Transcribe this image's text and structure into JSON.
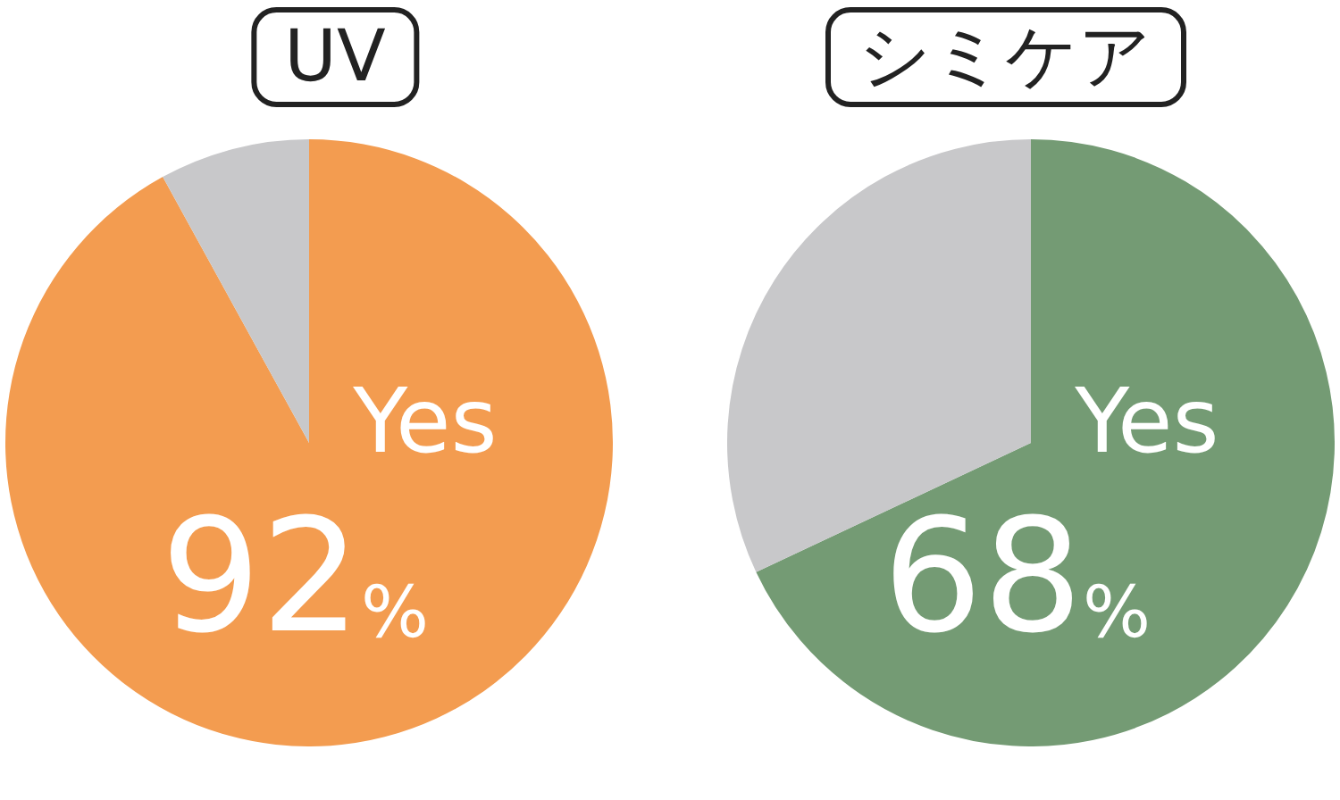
{
  "chart_data": [
    {
      "type": "pie",
      "title": "UV",
      "categories": [
        "Yes",
        null
      ],
      "values": [
        92,
        8
      ],
      "colors": [
        "#f39c50",
        "#c8c8ca"
      ],
      "value_labels": [
        "92%",
        null
      ],
      "legend": false
    },
    {
      "type": "pie",
      "title": "シミケア",
      "categories": [
        "Yes",
        null
      ],
      "values": [
        68,
        32
      ],
      "colors": [
        "#749b74",
        "#c8c8ca"
      ],
      "value_labels": [
        "68%",
        null
      ],
      "legend": false
    }
  ]
}
